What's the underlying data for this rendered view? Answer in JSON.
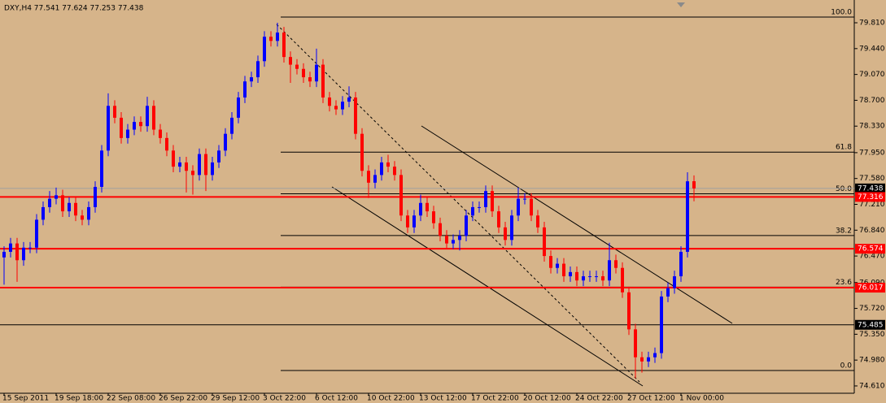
{
  "chart_data": {
    "type": "candlestick",
    "title": "DXY,H4  77.541 77.624 77.253 77.438",
    "categories": [
      "15 Sep 2011",
      null,
      null,
      null,
      null,
      null,
      null,
      null,
      "19 Sep 18:00",
      null,
      null,
      null,
      null,
      null,
      null,
      null,
      "22 Sep 08:00",
      null,
      null,
      null,
      null,
      null,
      null,
      null,
      "26 Sep 22:00",
      null,
      null,
      null,
      null,
      null,
      null,
      null,
      "29 Sep 12:00",
      null,
      null,
      null,
      null,
      null,
      null,
      null,
      "3 Oct 22:00",
      null,
      null,
      null,
      null,
      null,
      null,
      null,
      "6 Oct 12:00",
      null,
      null,
      null,
      null,
      null,
      null,
      null,
      "10 Oct 22:00",
      null,
      null,
      null,
      null,
      null,
      null,
      null,
      "13 Oct 12:00",
      null,
      null,
      null,
      null,
      null,
      null,
      null,
      "17 Oct 22:00",
      null,
      null,
      null,
      null,
      null,
      null,
      null,
      "20 Oct 12:00",
      null,
      null,
      null,
      null,
      null,
      null,
      null,
      "24 Oct 22:00",
      null,
      null,
      null,
      null,
      null,
      null,
      null,
      "27 Oct 12:00",
      null,
      null,
      null,
      null,
      null,
      null,
      null,
      "1 Nov 00:00",
      null,
      null
    ],
    "open": [
      76.45,
      76.53,
      76.65,
      76.41,
      76.59,
      76.59,
      76.99,
      77.17,
      77.29,
      77.34,
      77.11,
      77.23,
      77.05,
      76.99,
      77.17,
      77.46,
      77.98,
      78.62,
      78.45,
      78.16,
      78.28,
      78.39,
      78.33,
      78.62,
      78.28,
      78.16,
      77.98,
      77.75,
      77.81,
      77.69,
      77.63,
      77.93,
      77.63,
      77.81,
      77.98,
      78.22,
      78.45,
      78.74,
      78.97,
      79.03,
      79.26,
      79.61,
      79.55,
      79.67,
      79.32,
      79.21,
      79.15,
      79.03,
      78.97,
      79.21,
      78.74,
      78.62,
      78.57,
      78.68,
      78.74,
      78.22,
      77.69,
      77.52,
      77.63,
      77.81,
      77.75,
      77.63,
      77.05,
      76.88,
      77.05,
      77.23,
      77.11,
      76.94,
      76.76,
      76.65,
      76.7,
      76.76,
      77.05,
      77.17,
      77.17,
      77.4,
      77.11,
      76.88,
      76.7,
      77.05,
      77.29,
      77.29,
      77.05,
      76.88,
      76.47,
      76.3,
      76.36,
      76.18,
      76.24,
      76.12,
      76.18,
      76.18,
      76.18,
      76.12,
      76.41,
      76.3,
      75.95,
      75.42,
      75.02,
      74.96,
      75.02,
      75.08,
      75.89,
      76.01,
      76.18,
      76.53,
      77.541
    ],
    "high": [
      76.61,
      76.73,
      76.73,
      76.67,
      76.67,
      77.07,
      77.25,
      77.4,
      77.45,
      77.42,
      77.31,
      77.31,
      77.13,
      77.25,
      77.54,
      78.06,
      78.8,
      78.7,
      78.53,
      78.36,
      78.47,
      78.47,
      78.75,
      78.7,
      78.36,
      78.24,
      78.06,
      77.89,
      77.89,
      77.77,
      78.01,
      78.01,
      77.89,
      78.06,
      78.3,
      78.53,
      78.82,
      79.05,
      79.11,
      79.34,
      79.69,
      79.69,
      79.81,
      79.75,
      79.4,
      79.29,
      79.23,
      79.11,
      79.44,
      79.29,
      78.82,
      78.7,
      78.76,
      78.9,
      78.82,
      78.3,
      77.77,
      77.71,
      77.89,
      77.92,
      77.83,
      77.71,
      77.13,
      77.13,
      77.35,
      77.31,
      77.19,
      77.02,
      76.84,
      76.78,
      76.84,
      77.13,
      77.25,
      77.25,
      77.48,
      77.48,
      77.19,
      76.96,
      77.13,
      77.45,
      77.37,
      77.37,
      77.13,
      76.96,
      76.55,
      76.44,
      76.44,
      76.32,
      76.32,
      76.26,
      76.26,
      76.26,
      76.26,
      76.66,
      76.49,
      76.38,
      76.03,
      75.5,
      75.1,
      75.1,
      75.16,
      75.97,
      76.09,
      76.26,
      76.61,
      77.67,
      77.624
    ],
    "low": [
      76.06,
      76.45,
      76.1,
      76.33,
      76.51,
      76.51,
      76.91,
      77.09,
      77.21,
      77.03,
      77.03,
      76.97,
      76.91,
      76.91,
      77.09,
      77.38,
      77.9,
      78.37,
      78.08,
      78.08,
      78.2,
      78.25,
      78.25,
      78.2,
      78.08,
      77.9,
      77.67,
      77.67,
      77.38,
      77.35,
      77.55,
      77.4,
      77.55,
      77.73,
      77.9,
      78.14,
      78.37,
      78.66,
      78.89,
      78.95,
      79.18,
      79.47,
      79.47,
      79.24,
      78.95,
      79.07,
      78.95,
      78.89,
      78.89,
      78.66,
      78.54,
      78.49,
      78.49,
      78.6,
      78.14,
      77.61,
      77.3,
      77.44,
      77.55,
      77.67,
      77.55,
      76.97,
      76.8,
      76.8,
      76.97,
      77.03,
      76.86,
      76.68,
      76.57,
      76.57,
      76.55,
      76.68,
      76.97,
      77.09,
      77.09,
      77.03,
      76.8,
      76.62,
      76.62,
      76.97,
      77.21,
      76.97,
      76.8,
      76.39,
      76.22,
      76.22,
      76.1,
      76.1,
      76.04,
      76.04,
      76.1,
      76.1,
      76.04,
      76.04,
      76.22,
      75.87,
      75.34,
      74.72,
      74.8,
      74.88,
      74.94,
      75.0,
      75.81,
      75.93,
      76.1,
      76.45,
      77.253
    ],
    "close": [
      76.53,
      76.65,
      76.41,
      76.59,
      76.59,
      76.99,
      77.17,
      77.29,
      77.34,
      77.11,
      77.23,
      77.05,
      76.99,
      77.17,
      77.46,
      77.98,
      78.62,
      78.45,
      78.16,
      78.28,
      78.39,
      78.33,
      78.62,
      78.28,
      78.16,
      77.98,
      77.75,
      77.81,
      77.69,
      77.63,
      77.93,
      77.63,
      77.81,
      77.98,
      78.22,
      78.45,
      78.74,
      78.97,
      79.03,
      79.26,
      79.61,
      79.55,
      79.67,
      79.32,
      79.21,
      79.15,
      79.03,
      78.97,
      79.21,
      78.74,
      78.62,
      78.57,
      78.68,
      78.74,
      78.22,
      77.69,
      77.52,
      77.63,
      77.81,
      77.75,
      77.63,
      77.05,
      76.88,
      77.05,
      77.23,
      77.11,
      76.94,
      76.76,
      76.65,
      76.7,
      76.76,
      77.05,
      77.17,
      77.17,
      77.4,
      77.11,
      76.88,
      76.7,
      77.05,
      77.29,
      77.29,
      77.05,
      76.88,
      76.47,
      76.3,
      76.36,
      76.18,
      76.24,
      76.12,
      76.18,
      76.18,
      76.18,
      76.12,
      76.41,
      76.3,
      75.95,
      75.42,
      75.02,
      74.96,
      75.02,
      75.08,
      75.89,
      76.01,
      76.18,
      76.53,
      77.54,
      77.438
    ],
    "up_color": "#0000ff",
    "down_color": "#ff0000",
    "ylim": [
      74.505,
      80.136
    ],
    "yticks": [
      {
        "value": 79.81,
        "label": "79.810"
      },
      {
        "value": 79.44,
        "label": "79.440"
      },
      {
        "value": 79.07,
        "label": "79.070"
      },
      {
        "value": 78.7,
        "label": "78.700"
      },
      {
        "value": 78.33,
        "label": "78.330"
      },
      {
        "value": 77.95,
        "label": "77.950"
      },
      {
        "value": 77.58,
        "label": "77.580"
      },
      {
        "value": 77.21,
        "label": "77.210"
      },
      {
        "value": 76.84,
        "label": "76.840"
      },
      {
        "value": 76.47,
        "label": "76.470"
      },
      {
        "value": 76.09,
        "label": "76.090"
      },
      {
        "value": 75.72,
        "label": "75.720"
      },
      {
        "value": 75.35,
        "label": "75.350"
      },
      {
        "value": 74.98,
        "label": "74.980"
      },
      {
        "value": 74.61,
        "label": "74.610"
      }
    ],
    "levels": [
      {
        "value": 77.438,
        "label": "77.438",
        "color": "#000000",
        "line": "#a0a0a0"
      },
      {
        "value": 77.316,
        "label": "77.316",
        "color": "#ff0000",
        "line": "#ff0000"
      },
      {
        "value": 76.574,
        "label": "76.574",
        "color": "#ff0000",
        "line": "#ff0000"
      },
      {
        "value": 76.017,
        "label": "76.017",
        "color": "#ff0000",
        "line": "#ff0000"
      },
      {
        "value": 75.485,
        "label": "75.485",
        "color": "#000000",
        "line": "#000000"
      }
    ],
    "fibonacci": [
      {
        "label": "100.0",
        "value": 79.891
      },
      {
        "label": "61.8",
        "value": 77.958
      },
      {
        "label": "50.0",
        "value": 77.361
      },
      {
        "label": "38.2",
        "value": 76.764
      },
      {
        "label": "23.6",
        "value": 76.025
      },
      {
        "label": "0.0",
        "value": 74.831
      }
    ]
  }
}
